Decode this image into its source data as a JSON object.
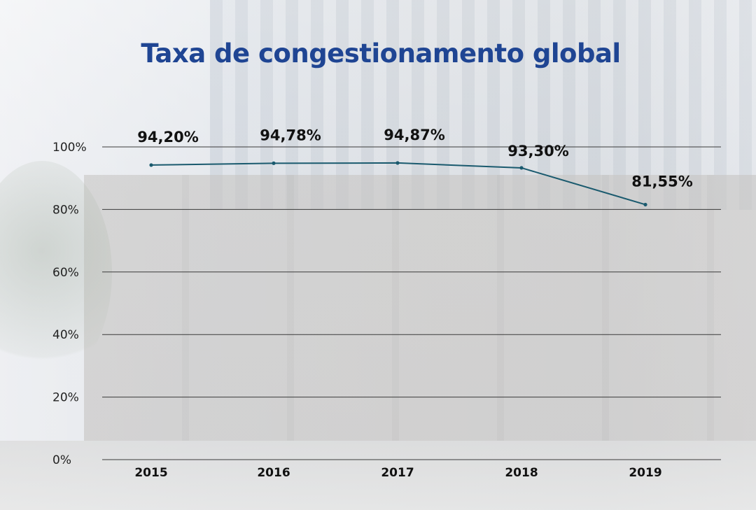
{
  "chart_data": {
    "type": "line",
    "title": "Taxa de congestionamento global",
    "categories": [
      "2015",
      "2016",
      "2017",
      "2018",
      "2019"
    ],
    "series": [
      {
        "name": "Taxa de congestionamento global",
        "values": [
          94.2,
          94.78,
          94.87,
          93.3,
          81.55
        ],
        "labels": [
          "94,20%",
          "94,78%",
          "94,87%",
          "93,30%",
          "81,55%"
        ]
      }
    ],
    "y_ticks": [
      0,
      20,
      40,
      60,
      80,
      100
    ],
    "y_tick_labels": [
      "0%",
      "20%",
      "40%",
      "60%",
      "80%",
      "100%"
    ],
    "ylim": [
      0,
      100
    ],
    "xlabel": "",
    "ylabel": "",
    "grid": true,
    "colors": {
      "line": "#1a5a6e",
      "title": "#1f4593",
      "grid": "#3a3a3a"
    }
  }
}
